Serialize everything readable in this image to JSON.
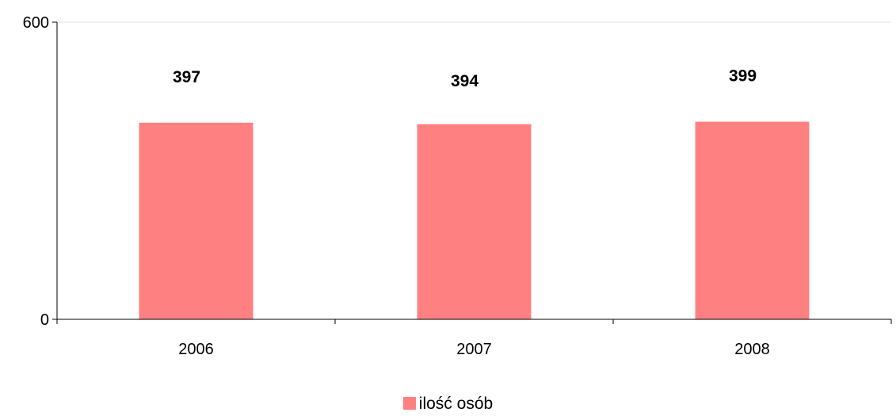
{
  "chart_data": {
    "type": "bar",
    "categories": [
      "2006",
      "2007",
      "2008"
    ],
    "series": [
      {
        "name": "ilość osób",
        "values": [
          397,
          394,
          399
        ],
        "color": "#FF8080"
      }
    ],
    "data_labels": [
      "397",
      "394",
      "399"
    ],
    "ylim": [
      0,
      600
    ],
    "y_ticks": [
      "0",
      "600"
    ],
    "title": "",
    "xlabel": "",
    "ylabel": "",
    "grid": false,
    "legend_position": "bottom"
  }
}
